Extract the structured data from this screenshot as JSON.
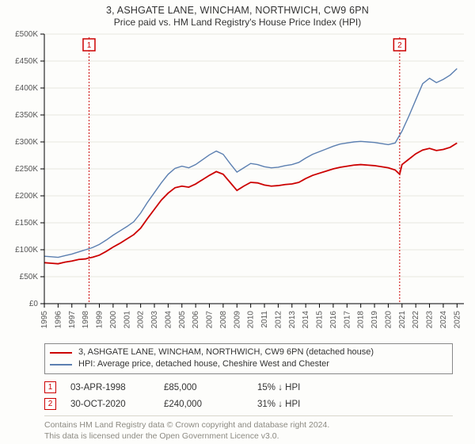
{
  "title_line1": "3, ASHGATE LANE, WINCHAM, NORTHWICH, CW9 6PN",
  "title_line2": "Price paid vs. HM Land Registry's House Price Index (HPI)",
  "chart": {
    "type": "line",
    "background_color": "#fdfdfb",
    "grid_color": "#e7e6df",
    "axis_color": "#000000",
    "tick_font_size": 10,
    "x": {
      "min": 1995,
      "max": 2025.5,
      "ticks": [
        1995,
        1996,
        1997,
        1998,
        1999,
        2000,
        2001,
        2002,
        2003,
        2004,
        2005,
        2006,
        2007,
        2008,
        2009,
        2010,
        2011,
        2012,
        2013,
        2014,
        2015,
        2016,
        2017,
        2018,
        2019,
        2020,
        2021,
        2022,
        2023,
        2024,
        2025
      ],
      "tick_labels": [
        "1995",
        "1996",
        "1997",
        "1998",
        "1999",
        "2000",
        "2001",
        "2002",
        "2003",
        "2004",
        "2005",
        "2006",
        "2007",
        "2008",
        "2009",
        "2010",
        "2011",
        "2012",
        "2013",
        "2014",
        "2015",
        "2016",
        "2017",
        "2018",
        "2019",
        "2020",
        "2021",
        "2022",
        "2023",
        "2024",
        "2025"
      ]
    },
    "y": {
      "min": 0,
      "max": 500000,
      "ticks": [
        0,
        50000,
        100000,
        150000,
        200000,
        250000,
        300000,
        350000,
        400000,
        450000,
        500000
      ],
      "tick_labels": [
        "£0",
        "£50K",
        "£100K",
        "£150K",
        "£200K",
        "£250K",
        "£300K",
        "£350K",
        "£400K",
        "£450K",
        "£500K"
      ],
      "currency_prefix": "£"
    },
    "series": [
      {
        "name": "property_price",
        "color": "#cc0000",
        "stroke_width": 1.8,
        "points": [
          [
            1995.0,
            76000
          ],
          [
            1995.5,
            75000
          ],
          [
            1996.0,
            74000
          ],
          [
            1996.5,
            77000
          ],
          [
            1997.0,
            79000
          ],
          [
            1997.5,
            82000
          ],
          [
            1998.0,
            83000
          ],
          [
            1998.25,
            85000
          ],
          [
            1998.5,
            86000
          ],
          [
            1999.0,
            90000
          ],
          [
            1999.5,
            97000
          ],
          [
            2000.0,
            105000
          ],
          [
            2000.5,
            112000
          ],
          [
            2001.0,
            120000
          ],
          [
            2001.5,
            128000
          ],
          [
            2002.0,
            140000
          ],
          [
            2002.5,
            158000
          ],
          [
            2003.0,
            175000
          ],
          [
            2003.5,
            192000
          ],
          [
            2004.0,
            205000
          ],
          [
            2004.5,
            215000
          ],
          [
            2005.0,
            218000
          ],
          [
            2005.5,
            216000
          ],
          [
            2006.0,
            222000
          ],
          [
            2006.5,
            230000
          ],
          [
            2007.0,
            238000
          ],
          [
            2007.5,
            245000
          ],
          [
            2008.0,
            240000
          ],
          [
            2008.5,
            225000
          ],
          [
            2009.0,
            210000
          ],
          [
            2009.5,
            218000
          ],
          [
            2010.0,
            225000
          ],
          [
            2010.5,
            224000
          ],
          [
            2011.0,
            220000
          ],
          [
            2011.5,
            218000
          ],
          [
            2012.0,
            219000
          ],
          [
            2012.5,
            221000
          ],
          [
            2013.0,
            222000
          ],
          [
            2013.5,
            225000
          ],
          [
            2014.0,
            232000
          ],
          [
            2014.5,
            238000
          ],
          [
            2015.0,
            242000
          ],
          [
            2015.5,
            246000
          ],
          [
            2016.0,
            250000
          ],
          [
            2016.5,
            253000
          ],
          [
            2017.0,
            255000
          ],
          [
            2017.5,
            257000
          ],
          [
            2018.0,
            258000
          ],
          [
            2018.5,
            257000
          ],
          [
            2019.0,
            256000
          ],
          [
            2019.5,
            254000
          ],
          [
            2020.0,
            252000
          ],
          [
            2020.5,
            248000
          ],
          [
            2020.83,
            240000
          ],
          [
            2021.0,
            258000
          ],
          [
            2021.5,
            268000
          ],
          [
            2022.0,
            278000
          ],
          [
            2022.5,
            285000
          ],
          [
            2023.0,
            288000
          ],
          [
            2023.5,
            284000
          ],
          [
            2024.0,
            286000
          ],
          [
            2024.5,
            290000
          ],
          [
            2025.0,
            298000
          ]
        ]
      },
      {
        "name": "hpi_detached_cheshire_west",
        "color": "#5b7fb0",
        "stroke_width": 1.4,
        "points": [
          [
            1995.0,
            88000
          ],
          [
            1995.5,
            87000
          ],
          [
            1996.0,
            86000
          ],
          [
            1996.5,
            89000
          ],
          [
            1997.0,
            92000
          ],
          [
            1997.5,
            96000
          ],
          [
            1998.0,
            100000
          ],
          [
            1998.5,
            104000
          ],
          [
            1999.0,
            110000
          ],
          [
            1999.5,
            118000
          ],
          [
            2000.0,
            127000
          ],
          [
            2000.5,
            135000
          ],
          [
            2001.0,
            143000
          ],
          [
            2001.5,
            152000
          ],
          [
            2002.0,
            168000
          ],
          [
            2002.5,
            188000
          ],
          [
            2003.0,
            206000
          ],
          [
            2003.5,
            224000
          ],
          [
            2004.0,
            240000
          ],
          [
            2004.5,
            251000
          ],
          [
            2005.0,
            255000
          ],
          [
            2005.5,
            252000
          ],
          [
            2006.0,
            258000
          ],
          [
            2006.5,
            267000
          ],
          [
            2007.0,
            276000
          ],
          [
            2007.5,
            283000
          ],
          [
            2008.0,
            277000
          ],
          [
            2008.5,
            260000
          ],
          [
            2009.0,
            244000
          ],
          [
            2009.5,
            252000
          ],
          [
            2010.0,
            260000
          ],
          [
            2010.5,
            258000
          ],
          [
            2011.0,
            254000
          ],
          [
            2011.5,
            252000
          ],
          [
            2012.0,
            253000
          ],
          [
            2012.5,
            256000
          ],
          [
            2013.0,
            258000
          ],
          [
            2013.5,
            262000
          ],
          [
            2014.0,
            270000
          ],
          [
            2014.5,
            277000
          ],
          [
            2015.0,
            282000
          ],
          [
            2015.5,
            287000
          ],
          [
            2016.0,
            292000
          ],
          [
            2016.5,
            296000
          ],
          [
            2017.0,
            298000
          ],
          [
            2017.5,
            300000
          ],
          [
            2018.0,
            301000
          ],
          [
            2018.5,
            300000
          ],
          [
            2019.0,
            299000
          ],
          [
            2019.5,
            297000
          ],
          [
            2020.0,
            295000
          ],
          [
            2020.5,
            298000
          ],
          [
            2021.0,
            320000
          ],
          [
            2021.5,
            348000
          ],
          [
            2022.0,
            378000
          ],
          [
            2022.5,
            408000
          ],
          [
            2023.0,
            418000
          ],
          [
            2023.5,
            410000
          ],
          [
            2024.0,
            416000
          ],
          [
            2024.5,
            424000
          ],
          [
            2025.0,
            436000
          ]
        ]
      }
    ],
    "event_markers": [
      {
        "id": "1",
        "x": 1998.25,
        "line_color": "#cc0000",
        "dash": "2,2",
        "box_border": "#cc0000"
      },
      {
        "id": "2",
        "x": 2020.83,
        "line_color": "#cc0000",
        "dash": "2,2",
        "box_border": "#cc0000"
      }
    ]
  },
  "legend": {
    "items": [
      {
        "color": "#cc0000",
        "label": "3, ASHGATE LANE, WINCHAM, NORTHWICH, CW9 6PN (detached house)"
      },
      {
        "color": "#5b7fb0",
        "label": "HPI: Average price, detached house, Cheshire West and Chester"
      }
    ]
  },
  "transactions": [
    {
      "marker": "1",
      "date": "03-APR-1998",
      "price": "£85,000",
      "delta": "15% ↓ HPI"
    },
    {
      "marker": "2",
      "date": "30-OCT-2020",
      "price": "£240,000",
      "delta": "31% ↓ HPI"
    }
  ],
  "footer": {
    "line1": "Contains HM Land Registry data © Crown copyright and database right 2024.",
    "line2": "This data is licensed under the Open Government Licence v3.0."
  }
}
